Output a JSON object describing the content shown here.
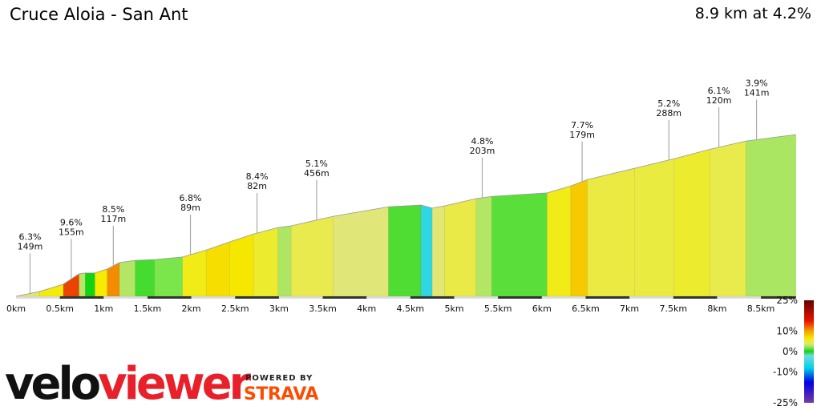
{
  "header": {
    "title": "Cruce Aloia - San Ant",
    "summary": "8.9 km at 4.2%"
  },
  "chart_data": {
    "type": "area",
    "xlabel": "",
    "ylabel": "",
    "xlim": [
      0,
      8.9
    ],
    "x_ticks": [
      "0km",
      "0.5km",
      "1km",
      "1.5km",
      "2km",
      "2.5km",
      "3km",
      "3.5km",
      "4km",
      "4.5km",
      "5km",
      "5.5km",
      "6km",
      "6.5km",
      "7km",
      "7.5km",
      "8km",
      "8.5km"
    ],
    "x_tick_values": [
      0,
      0.5,
      1,
      1.5,
      2,
      2.5,
      3,
      3.5,
      4,
      4.5,
      5,
      5.5,
      6,
      6.5,
      7,
      7.5,
      8,
      8.5
    ],
    "profile_km": [
      0,
      0.27,
      0.54,
      0.72,
      0.79,
      0.9,
      1.04,
      1.18,
      1.36,
      1.58,
      1.9,
      2.17,
      2.44,
      2.71,
      2.99,
      3.14,
      3.62,
      4.25,
      4.62,
      4.75,
      4.89,
      5.25,
      5.43,
      6.06,
      6.33,
      6.52,
      7.06,
      7.51,
      7.92,
      8.33,
      8.9
    ],
    "profile_gain_m": [
      0,
      11,
      28,
      52,
      54,
      54,
      63,
      78,
      83,
      85,
      91,
      107,
      126,
      144,
      159,
      163,
      185,
      207,
      211,
      204,
      209,
      226,
      231,
      239,
      255,
      270,
      296,
      318,
      340,
      359,
      374
    ],
    "annotations": [
      {
        "km": 0.16,
        "grade": "6.3%",
        "length": "149m"
      },
      {
        "km": 0.63,
        "grade": "9.6%",
        "length": "155m"
      },
      {
        "km": 1.11,
        "grade": "8.5%",
        "length": "117m"
      },
      {
        "km": 1.99,
        "grade": "6.8%",
        "length": "89m"
      },
      {
        "km": 2.75,
        "grade": "8.4%",
        "length": "82m"
      },
      {
        "km": 3.43,
        "grade": "5.1%",
        "length": "456m"
      },
      {
        "km": 5.32,
        "grade": "4.8%",
        "length": "203m"
      },
      {
        "km": 6.46,
        "grade": "7.7%",
        "length": "179m"
      },
      {
        "km": 7.45,
        "grade": "5.2%",
        "length": "288m"
      },
      {
        "km": 8.02,
        "grade": "6.1%",
        "length": "120m"
      },
      {
        "km": 8.45,
        "grade": "3.9%",
        "length": "141m"
      }
    ],
    "legend": {
      "labels": [
        "25%",
        "10%",
        "0%",
        "-10%",
        "-25%"
      ],
      "values": [
        25,
        10,
        0,
        -10,
        -25
      ]
    }
  },
  "branding": {
    "logo_velo": "velo",
    "logo_viewer": "viewer",
    "powered_by": "POWERED BY",
    "strava": "STRAVA"
  }
}
